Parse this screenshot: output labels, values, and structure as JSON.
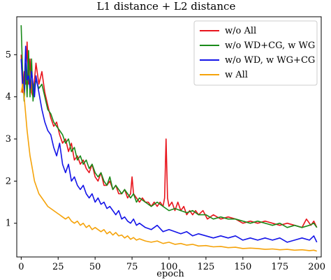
{
  "chart_data": {
    "type": "line",
    "title": "L1 distance + L2 distance",
    "xlabel": "epoch",
    "ylabel": "",
    "xlim": [
      -3,
      203
    ],
    "ylim": [
      0.2,
      5.9
    ],
    "xticks": [
      0,
      25,
      50,
      75,
      100,
      125,
      150,
      175,
      200
    ],
    "yticks": [
      1,
      2,
      3,
      4,
      5
    ],
    "grid": false,
    "legend_position": "top-right",
    "series": [
      {
        "name": "w/o All",
        "color": "#e8141c",
        "x": [
          0,
          1,
          2,
          3,
          4,
          5,
          6,
          7,
          8,
          9,
          10,
          12,
          14,
          16,
          18,
          20,
          22,
          24,
          26,
          28,
          30,
          32,
          34,
          36,
          38,
          40,
          42,
          44,
          46,
          48,
          50,
          52,
          54,
          56,
          58,
          60,
          62,
          64,
          66,
          68,
          70,
          72,
          74,
          75,
          76,
          78,
          80,
          82,
          84,
          86,
          88,
          90,
          92,
          94,
          96,
          97,
          98,
          99,
          100,
          102,
          104,
          106,
          108,
          110,
          112,
          114,
          116,
          118,
          120,
          123,
          126,
          130,
          135,
          140,
          145,
          150,
          155,
          160,
          165,
          170,
          175,
          180,
          185,
          190,
          193,
          196,
          198,
          200
        ],
        "y": [
          5.0,
          4.1,
          4.6,
          4.3,
          5.3,
          4.3,
          4.9,
          4.1,
          4.0,
          4.4,
          4.8,
          4.3,
          4.6,
          4.1,
          3.8,
          3.5,
          3.3,
          3.4,
          3.1,
          2.9,
          3.0,
          2.7,
          2.9,
          2.5,
          2.6,
          2.4,
          2.5,
          2.3,
          2.2,
          2.4,
          2.1,
          2.0,
          2.2,
          1.9,
          1.9,
          2.0,
          1.8,
          1.9,
          1.7,
          1.7,
          1.8,
          1.6,
          1.7,
          2.1,
          1.7,
          1.6,
          1.5,
          1.6,
          1.5,
          1.5,
          1.4,
          1.5,
          1.4,
          1.5,
          1.4,
          1.6,
          3.0,
          1.6,
          1.4,
          1.5,
          1.3,
          1.5,
          1.3,
          1.4,
          1.2,
          1.3,
          1.2,
          1.3,
          1.2,
          1.3,
          1.1,
          1.2,
          1.1,
          1.15,
          1.1,
          1.0,
          1.05,
          1.0,
          1.05,
          1.0,
          0.95,
          1.0,
          0.95,
          0.9,
          1.1,
          0.95,
          1.05,
          0.9
        ]
      },
      {
        "name": "w/o WD+CG, w WG",
        "color": "#1a8a1a",
        "x": [
          0,
          1,
          2,
          3,
          4,
          5,
          6,
          7,
          8,
          9,
          10,
          12,
          14,
          16,
          18,
          20,
          22,
          24,
          26,
          28,
          30,
          32,
          34,
          36,
          38,
          40,
          42,
          44,
          46,
          48,
          50,
          52,
          54,
          56,
          58,
          60,
          62,
          64,
          66,
          68,
          70,
          72,
          74,
          76,
          78,
          80,
          84,
          88,
          92,
          96,
          100,
          104,
          108,
          112,
          116,
          120,
          125,
          130,
          135,
          140,
          145,
          150,
          155,
          160,
          165,
          170,
          175,
          180,
          185,
          190,
          195,
          198,
          200
        ],
        "y": [
          5.7,
          4.5,
          3.9,
          4.8,
          4.0,
          5.1,
          4.0,
          4.9,
          3.9,
          4.3,
          4.4,
          4.2,
          4.3,
          4.0,
          3.7,
          3.6,
          3.4,
          3.3,
          3.2,
          3.1,
          2.9,
          3.0,
          2.7,
          2.8,
          2.5,
          2.6,
          2.4,
          2.5,
          2.3,
          2.4,
          2.2,
          2.1,
          2.2,
          2.0,
          1.9,
          2.1,
          1.8,
          1.9,
          1.8,
          1.7,
          1.8,
          1.7,
          1.6,
          1.7,
          1.5,
          1.6,
          1.5,
          1.4,
          1.5,
          1.4,
          1.3,
          1.35,
          1.3,
          1.25,
          1.3,
          1.2,
          1.2,
          1.1,
          1.15,
          1.1,
          1.1,
          1.05,
          1.0,
          1.05,
          1.0,
          0.95,
          1.0,
          0.9,
          0.95,
          0.9,
          0.95,
          1.0,
          0.9
        ]
      },
      {
        "name": "w/o WD, w WG+CG",
        "color": "#1414e8",
        "x": [
          0,
          1,
          2,
          3,
          4,
          5,
          6,
          7,
          8,
          9,
          10,
          12,
          14,
          16,
          18,
          20,
          22,
          24,
          26,
          28,
          30,
          32,
          34,
          36,
          38,
          40,
          42,
          44,
          46,
          48,
          50,
          52,
          54,
          56,
          58,
          60,
          62,
          64,
          66,
          68,
          70,
          72,
          74,
          76,
          78,
          80,
          84,
          88,
          92,
          96,
          100,
          104,
          108,
          112,
          116,
          120,
          125,
          130,
          135,
          140,
          145,
          150,
          155,
          160,
          165,
          170,
          175,
          180,
          185,
          190,
          195,
          198,
          200
        ],
        "y": [
          4.9,
          4.3,
          4.1,
          5.2,
          4.4,
          4.5,
          4.2,
          4.6,
          4.3,
          4.0,
          4.5,
          4.1,
          3.7,
          3.4,
          3.2,
          3.1,
          2.8,
          2.6,
          2.9,
          2.4,
          2.2,
          2.4,
          2.0,
          2.1,
          1.9,
          1.8,
          1.9,
          1.7,
          1.6,
          1.7,
          1.5,
          1.6,
          1.45,
          1.5,
          1.35,
          1.4,
          1.3,
          1.2,
          1.3,
          1.1,
          1.15,
          1.05,
          1.0,
          1.1,
          0.95,
          1.0,
          0.9,
          0.85,
          0.95,
          0.8,
          0.85,
          0.8,
          0.75,
          0.8,
          0.7,
          0.75,
          0.7,
          0.65,
          0.7,
          0.65,
          0.7,
          0.6,
          0.65,
          0.6,
          0.65,
          0.6,
          0.65,
          0.55,
          0.6,
          0.65,
          0.6,
          0.7,
          0.55
        ]
      },
      {
        "name": "w All",
        "color": "#f5a30a",
        "x": [
          0,
          1,
          2,
          3,
          4,
          5,
          6,
          7,
          8,
          9,
          10,
          12,
          14,
          16,
          18,
          20,
          22,
          24,
          26,
          28,
          30,
          32,
          34,
          36,
          38,
          40,
          42,
          44,
          46,
          48,
          50,
          52,
          54,
          56,
          58,
          60,
          62,
          64,
          66,
          68,
          70,
          72,
          74,
          76,
          78,
          80,
          84,
          88,
          92,
          96,
          100,
          104,
          108,
          112,
          116,
          120,
          125,
          130,
          135,
          140,
          145,
          150,
          155,
          160,
          165,
          170,
          175,
          180,
          185,
          190,
          195,
          198,
          200
        ],
        "y": [
          4.1,
          4.3,
          4.0,
          3.6,
          3.2,
          2.9,
          2.6,
          2.4,
          2.2,
          2.0,
          1.9,
          1.7,
          1.6,
          1.5,
          1.4,
          1.35,
          1.3,
          1.25,
          1.2,
          1.15,
          1.1,
          1.15,
          1.05,
          1.0,
          1.05,
          0.95,
          1.0,
          0.9,
          0.95,
          0.85,
          0.9,
          0.85,
          0.8,
          0.85,
          0.75,
          0.8,
          0.72,
          0.78,
          0.7,
          0.72,
          0.65,
          0.7,
          0.62,
          0.66,
          0.6,
          0.63,
          0.58,
          0.55,
          0.58,
          0.52,
          0.55,
          0.5,
          0.52,
          0.48,
          0.5,
          0.46,
          0.47,
          0.44,
          0.45,
          0.42,
          0.43,
          0.4,
          0.41,
          0.4,
          0.38,
          0.39,
          0.37,
          0.38,
          0.36,
          0.37,
          0.35,
          0.36,
          0.34
        ]
      }
    ]
  }
}
